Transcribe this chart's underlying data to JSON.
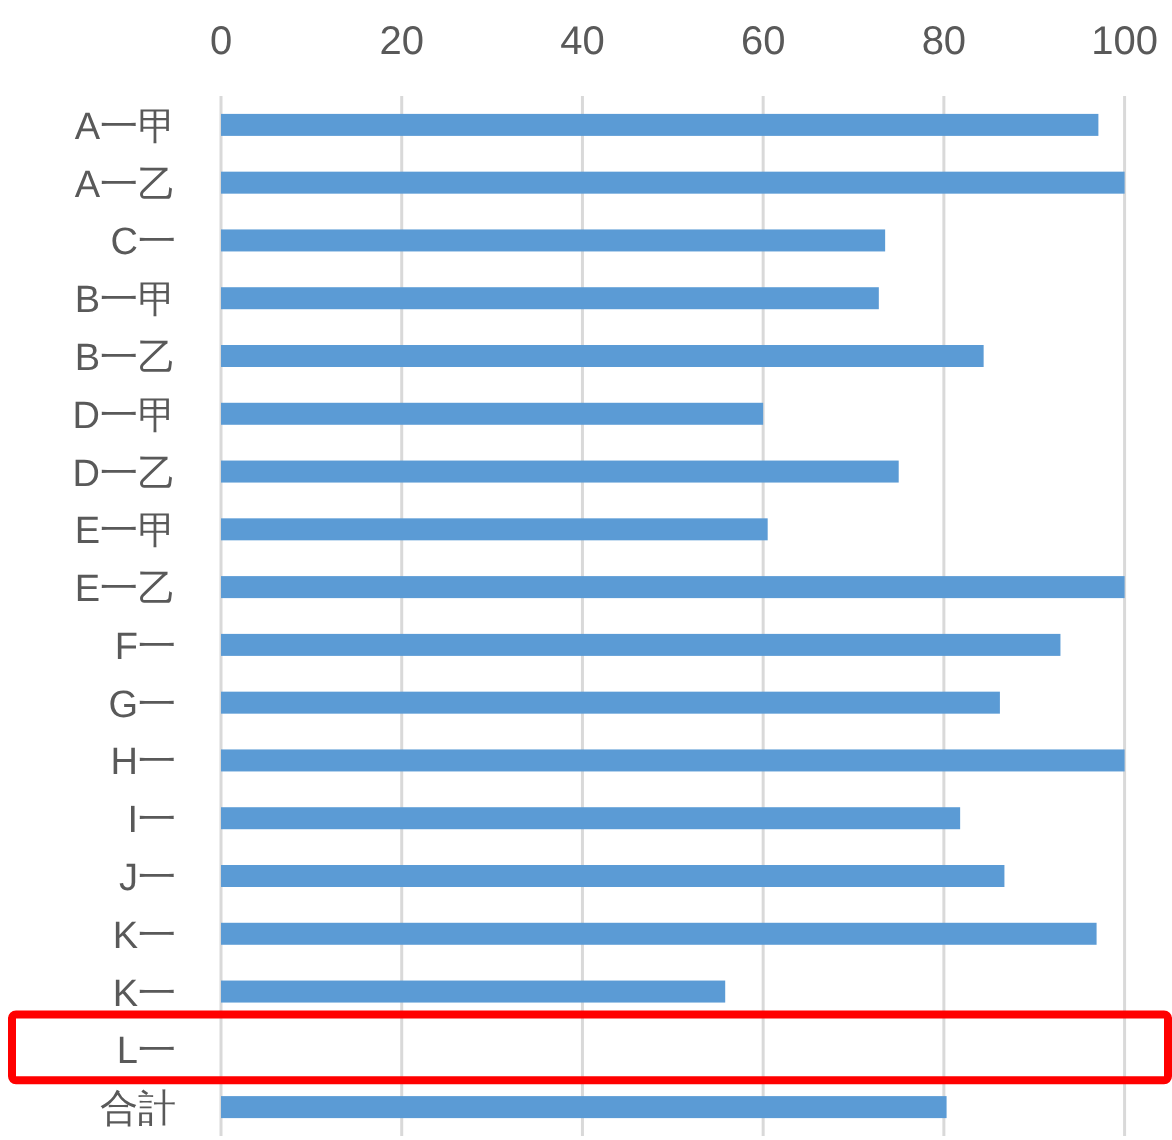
{
  "chart_data": {
    "type": "bar",
    "orientation": "horizontal",
    "categories": [
      "A一甲",
      "A一乙",
      "C一",
      "B一甲",
      "B一乙",
      "D一甲",
      "D一乙",
      "E一甲",
      "E一乙",
      "F一",
      "G一",
      "H一",
      "I一",
      "J一",
      "K一",
      "K一",
      "L一",
      "合計"
    ],
    "values": [
      97.1,
      100,
      73.5,
      72.8,
      84.4,
      60,
      75,
      60.5,
      100,
      92.9,
      86.2,
      100,
      81.8,
      86.7,
      96.9,
      55.8,
      null,
      80.3
    ],
    "color": "#5b9bd5",
    "xlim": [
      0,
      100
    ],
    "xticks": [
      0,
      20,
      40,
      60,
      80,
      100
    ],
    "grid": "x"
  }
}
